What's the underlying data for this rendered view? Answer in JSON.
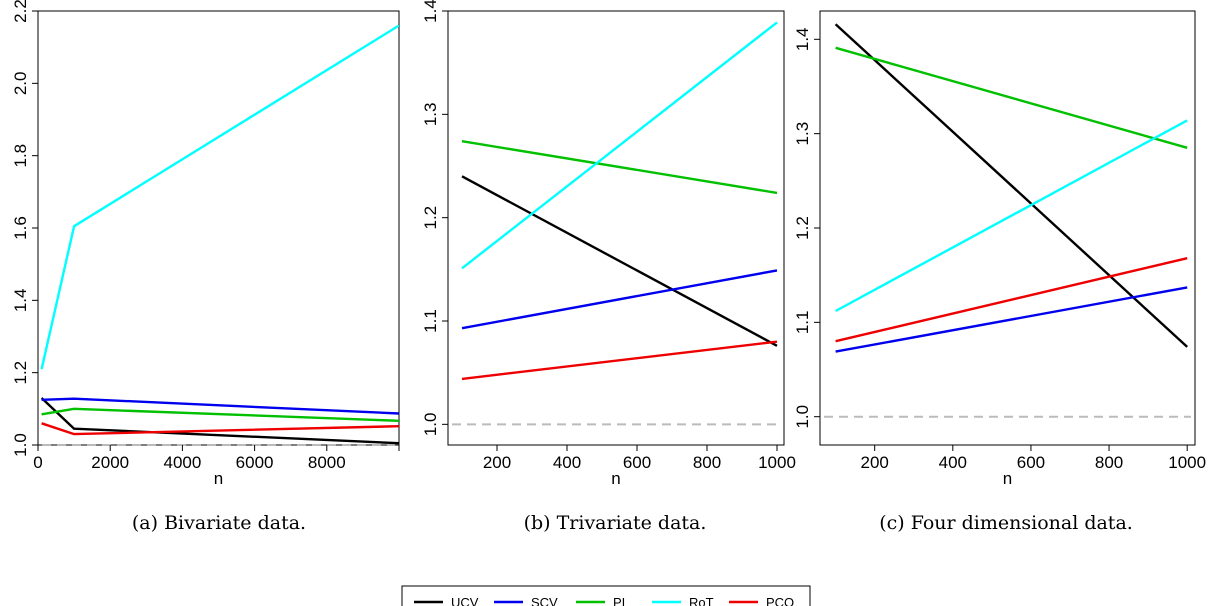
{
  "charts": [
    {
      "caption": "(a) Bivariate data.",
      "chart_data": {
        "type": "line",
        "xlabel": "n",
        "ylabel": "",
        "xlim": [
          0,
          10000
        ],
        "ylim": [
          1.0,
          2.2
        ],
        "xticks": [
          0,
          2000,
          4000,
          6000,
          8000,
          10000
        ],
        "xtick_labels": [
          "0",
          "2000",
          "4000",
          "6000",
          "8000",
          ""
        ],
        "yticks": [
          1.0,
          1.2,
          1.4,
          1.6,
          1.8,
          2.0,
          2.2
        ],
        "ytick_labels": [
          "1.0",
          "1.2",
          "1.4",
          "1.6",
          "1.8",
          "2.0",
          "2.2"
        ],
        "reference_line": 1.0,
        "x": [
          100,
          1000,
          10000
        ],
        "series": [
          {
            "name": "UCV",
            "values": [
              1.13,
              1.045,
              1.005
            ]
          },
          {
            "name": "SCV",
            "values": [
              1.125,
              1.128,
              1.087
            ]
          },
          {
            "name": "PI",
            "values": [
              1.085,
              1.1,
              1.067
            ]
          },
          {
            "name": "RoT",
            "values": [
              1.21,
              1.605,
              2.16
            ]
          },
          {
            "name": "PCO",
            "values": [
              1.06,
              1.03,
              1.052
            ]
          }
        ]
      }
    },
    {
      "caption": "(b) Trivariate data.",
      "chart_data": {
        "type": "line",
        "xlabel": "n",
        "ylabel": "",
        "xlim": [
          60,
          1020
        ],
        "ylim": [
          0.98,
          1.4
        ],
        "xticks": [
          200,
          400,
          600,
          800,
          1000
        ],
        "xtick_labels": [
          "200",
          "400",
          "600",
          "800",
          "1000"
        ],
        "yticks": [
          1.0,
          1.1,
          1.2,
          1.3,
          1.4
        ],
        "ytick_labels": [
          "1.0",
          "1.1",
          "1.2",
          "1.3",
          "1.4"
        ],
        "reference_line": 1.0,
        "x": [
          100,
          1000
        ],
        "series": [
          {
            "name": "UCV",
            "values": [
              1.24,
              1.076
            ]
          },
          {
            "name": "SCV",
            "values": [
              1.093,
              1.149
            ]
          },
          {
            "name": "PI",
            "values": [
              1.274,
              1.224
            ]
          },
          {
            "name": "RoT",
            "values": [
              1.151,
              1.389
            ]
          },
          {
            "name": "PCO",
            "values": [
              1.044,
              1.08
            ]
          }
        ]
      }
    },
    {
      "caption": "(c) Four dimensional data.",
      "chart_data": {
        "type": "line",
        "xlabel": "n",
        "ylabel": "",
        "xlim": [
          60,
          1020
        ],
        "ylim": [
          0.97,
          1.43
        ],
        "xticks": [
          200,
          400,
          600,
          800,
          1000
        ],
        "xtick_labels": [
          "200",
          "400",
          "600",
          "800",
          "1000"
        ],
        "yticks": [
          1.0,
          1.1,
          1.2,
          1.3,
          1.4
        ],
        "ytick_labels": [
          "1.0",
          "1.1",
          "1.2",
          "1.3",
          "1.4"
        ],
        "reference_line": 1.0,
        "x": [
          100,
          1000
        ],
        "series": [
          {
            "name": "UCV",
            "values": [
              1.416,
              1.074
            ]
          },
          {
            "name": "SCV",
            "values": [
              1.069,
              1.137
            ]
          },
          {
            "name": "PI",
            "values": [
              1.391,
              1.285
            ]
          },
          {
            "name": "RoT",
            "values": [
              1.112,
              1.314
            ]
          },
          {
            "name": "PCO",
            "values": [
              1.08,
              1.168
            ]
          }
        ]
      }
    }
  ],
  "legend": [
    {
      "name": "UCV",
      "color": "#000000"
    },
    {
      "name": "SCV",
      "color": "#0000ee"
    },
    {
      "name": "PI",
      "color": "#00c000"
    },
    {
      "name": "RoT",
      "color": "#00ffff"
    },
    {
      "name": "PCO",
      "color": "#ee0000"
    }
  ],
  "reference_line_color": "#bbbbbb"
}
